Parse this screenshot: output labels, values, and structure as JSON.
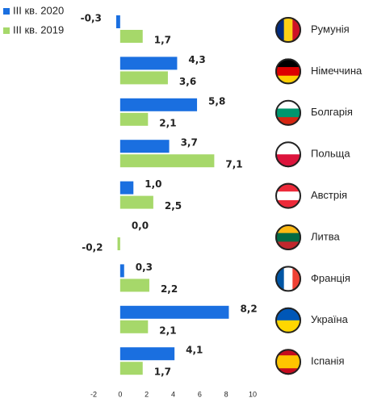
{
  "chart_data": {
    "type": "bar",
    "orientation": "horizontal",
    "categories": [
      "Румунія",
      "Німеччина",
      "Болгарія",
      "Польща",
      "Австрія",
      "Литва",
      "Франція",
      "Україна",
      "Іспанія"
    ],
    "series": [
      {
        "name": "III кв. 2020",
        "color": "#1a6fe0",
        "values": [
          -0.3,
          4.3,
          5.8,
          3.7,
          1.0,
          0.0,
          0.3,
          8.2,
          4.1
        ],
        "value_labels": [
          "-0,3",
          "4,3",
          "5,8",
          "3,7",
          "1,0",
          "0,0",
          "0,3",
          "8,2",
          "4,1"
        ]
      },
      {
        "name": "III кв. 2019",
        "color": "#a6d86a",
        "values": [
          1.7,
          3.6,
          2.1,
          7.1,
          2.5,
          -0.2,
          2.2,
          2.1,
          1.7
        ],
        "value_labels": [
          "1,7",
          "3,6",
          "2,1",
          "7,1",
          "2,5",
          "-0,2",
          "2,2",
          "2,1",
          "1,7"
        ]
      }
    ],
    "xlim": [
      -2,
      10
    ],
    "xticks": [
      -2,
      0,
      2,
      4,
      6,
      8,
      10
    ],
    "legend": "top-left",
    "grid": false
  }
}
